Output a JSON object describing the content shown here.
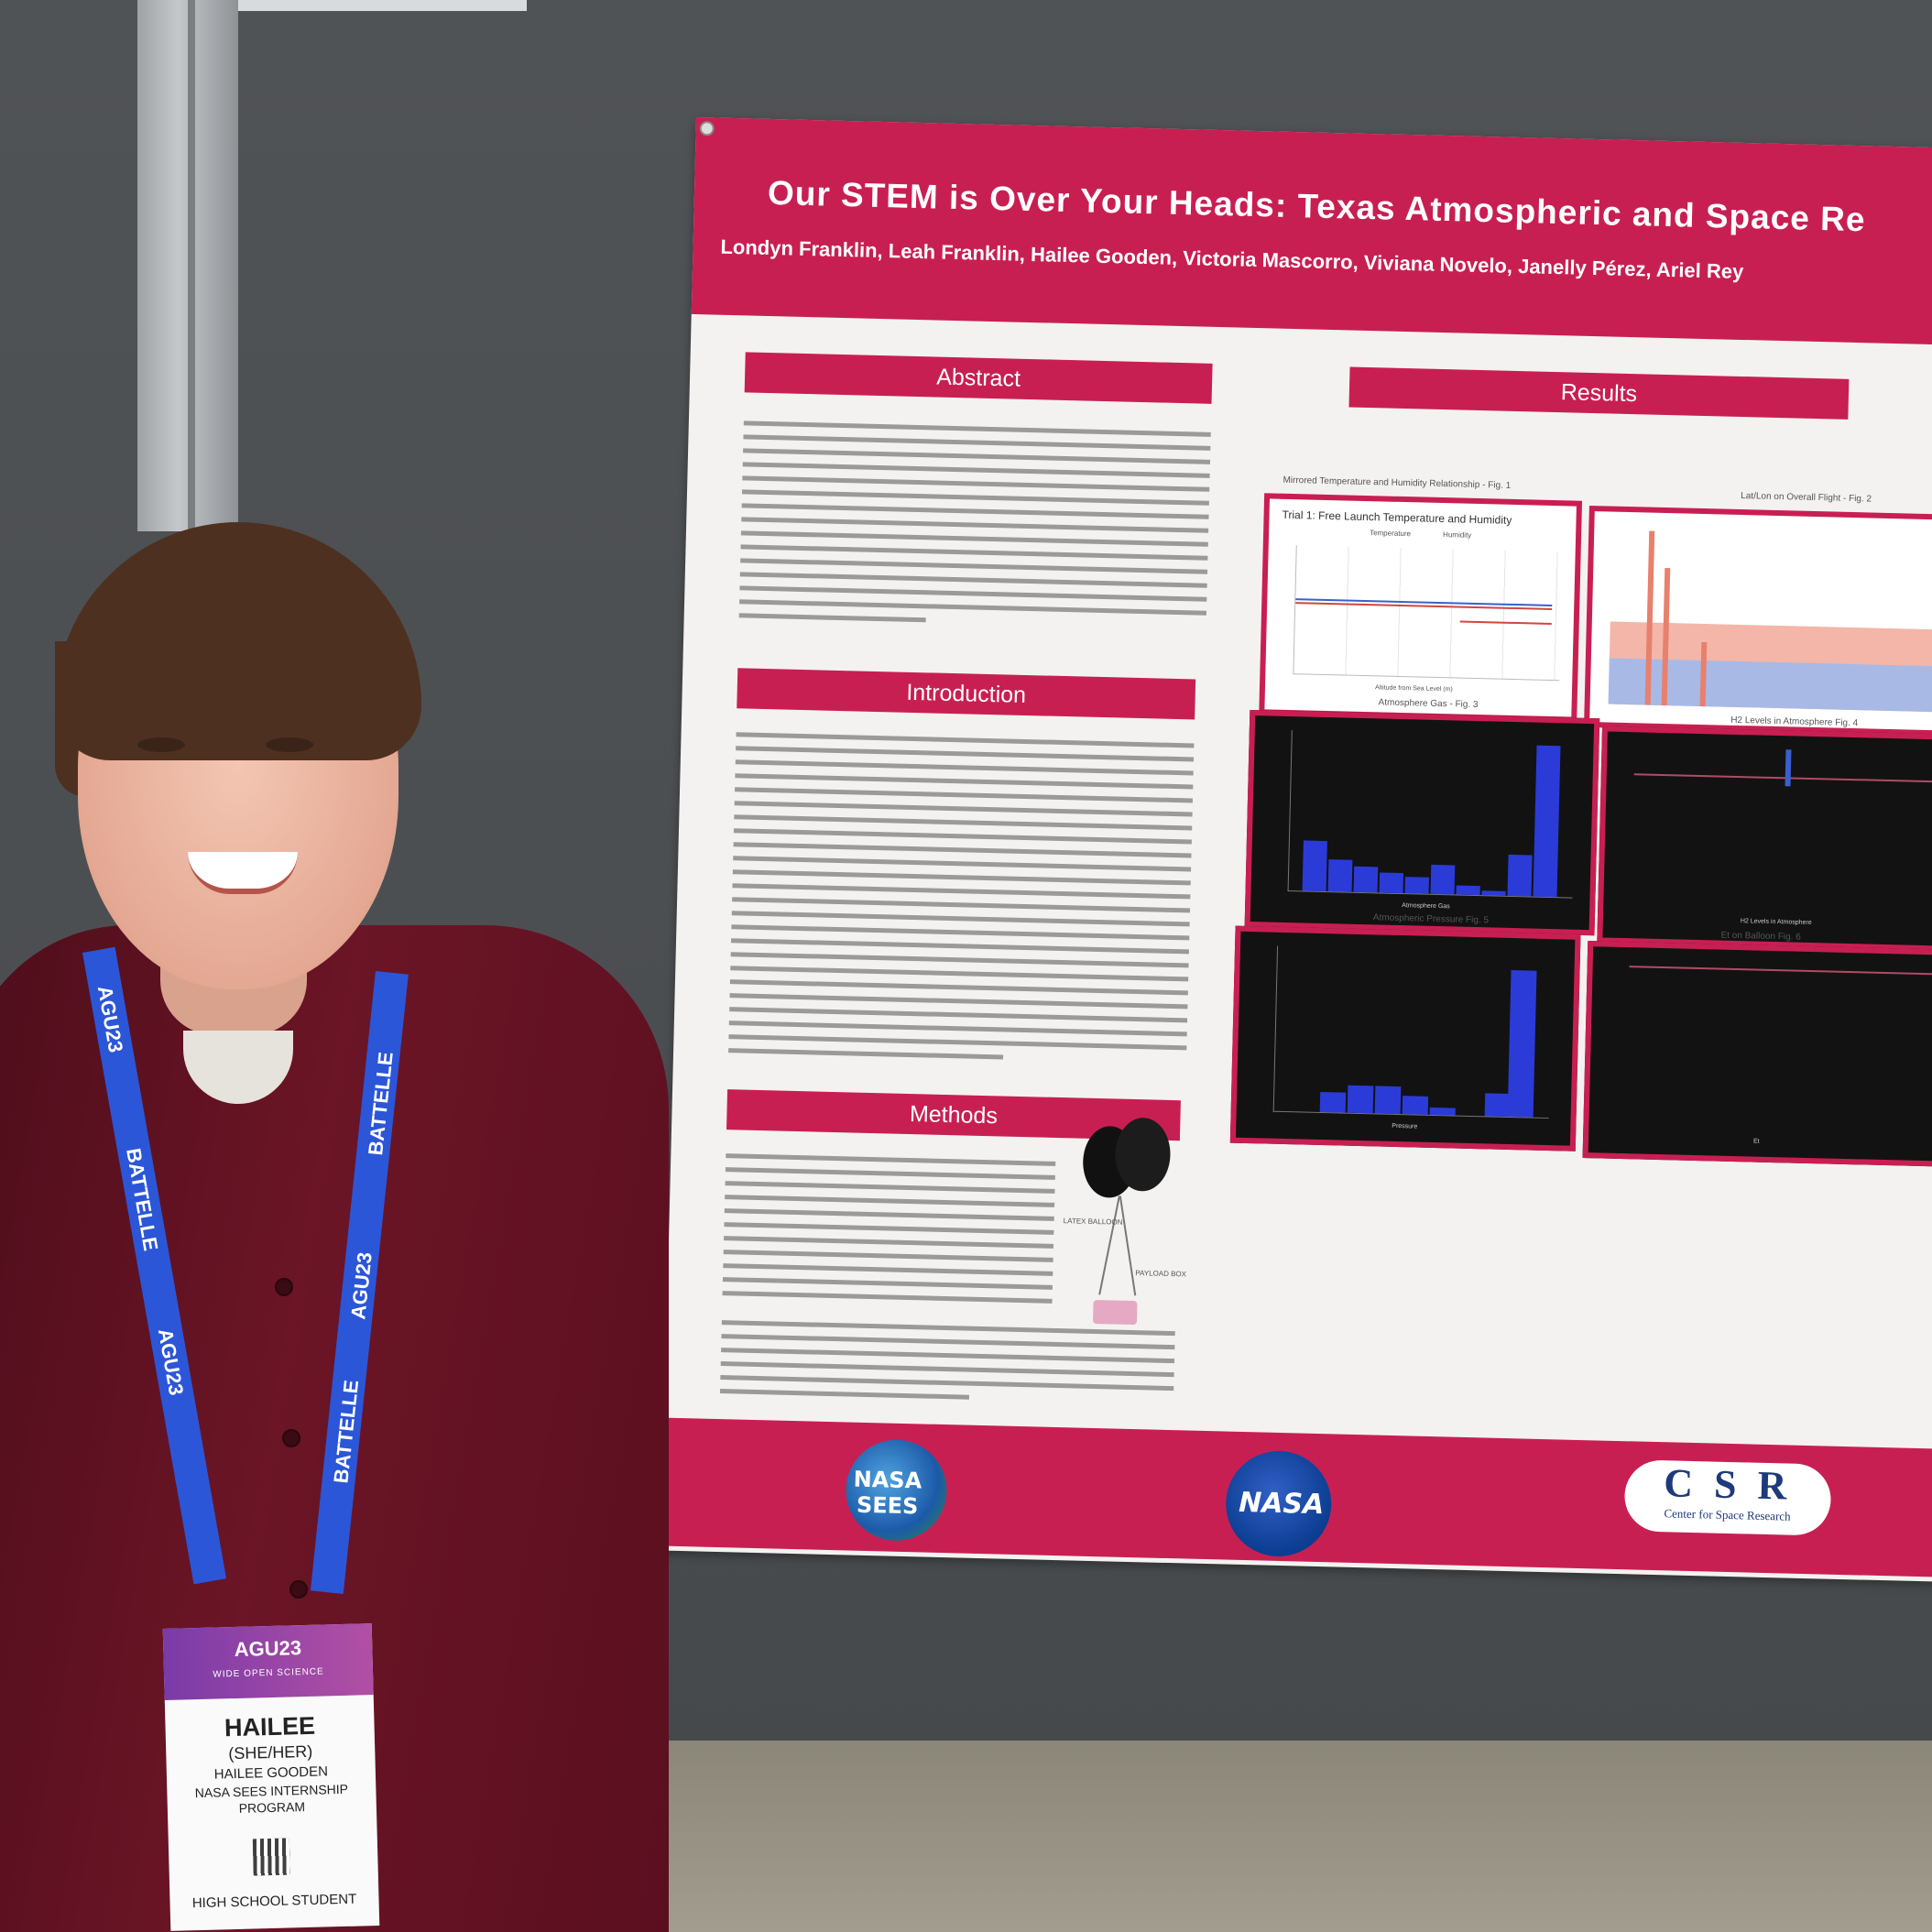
{
  "poster": {
    "title": "Our STEM is Over Your Heads: Texas Atmospheric and Space Re",
    "authors": "Londyn Franklin, Leah Franklin, Hailee Gooden, Victoria Mascorro, Viviana Novelo, Janelly Pérez, Ariel Rey",
    "sections": {
      "abstract": "Abstract",
      "introduction": "Introduction",
      "methods": "Methods",
      "results": "Results"
    },
    "figures": [
      {
        "caption": "Mirrored Temperature and Humidity Relationship - Fig. 1",
        "inner_title": "Trial 1: Free Launch Temperature and Humidity",
        "legend": [
          "Temperature",
          "Humidity"
        ],
        "xlabel": "Altitude from Sea Level (m)"
      },
      {
        "caption": "Lat/Lon on Overall Flight - Fig. 2"
      },
      {
        "caption": "Atmosphere Gas - Fig. 3",
        "xlabel": "Atmosphere Gas"
      },
      {
        "caption": "H2 Levels in Atmosphere Fig. 4",
        "xlabel": "H2 Levels in Atmosphere"
      },
      {
        "caption": "Atmospheric Pressure Fig. 5",
        "xlabel": "Pressure"
      },
      {
        "caption": "Et on Balloon Fig. 6",
        "xlabel": "Et"
      }
    ],
    "diagram_labels": {
      "balloon": "LATEX BALLOON",
      "payload": "PAYLOAD BOX"
    },
    "logos": {
      "sees_line1": "NASA",
      "sees_line2": "SEES",
      "nasa": "NASA",
      "csr_main": "C S R",
      "csr_sub": "Center for Space Research"
    }
  },
  "badge": {
    "event": "AGU23",
    "tagline": "WIDE OPEN SCIENCE",
    "name": "HAILEE",
    "pronouns": "(SHE/HER)",
    "full_name": "HAILEE GOODEN",
    "affiliation_1": "NASA SEES INTERNSHIP",
    "affiliation_2": "PROGRAM",
    "role": "HIGH SCHOOL STUDENT"
  },
  "lanyard": {
    "text_1": "AGU23",
    "text_2": "BATTELLE"
  },
  "colors": {
    "poster_accent": "#c81f52",
    "lanyard_blue": "#2c56d8",
    "wall": "#4b4e51"
  }
}
